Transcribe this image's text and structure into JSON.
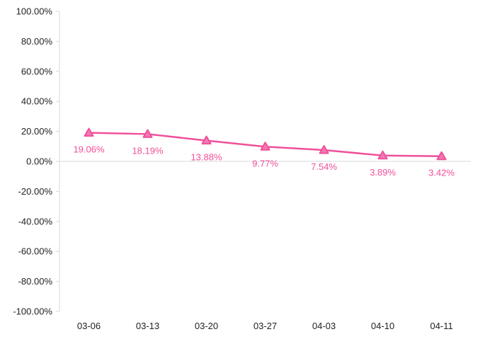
{
  "chart_data": {
    "type": "line",
    "categories": [
      "03-06",
      "03-13",
      "03-20",
      "03-27",
      "04-03",
      "04-10",
      "04-11"
    ],
    "series": [
      {
        "values": [
          19.06,
          18.19,
          13.88,
          9.77,
          7.54,
          3.89,
          3.42
        ],
        "data_labels": [
          "19.06%",
          "18.19%",
          "13.88%",
          "9.77%",
          "7.54%",
          "3.89%",
          "3.42%"
        ],
        "color": "#f0509a",
        "marker": "triangle",
        "marker_fill": "#f07ab6"
      }
    ],
    "ylim": [
      -100,
      100
    ],
    "yticks": [
      100,
      80,
      60,
      40,
      20,
      0,
      -20,
      -40,
      -60,
      -80,
      -100
    ],
    "ytick_labels": [
      "100.00%",
      "80.00%",
      "60.00%",
      "40.00%",
      "20.00%",
      "0.00%",
      "-20.00%",
      "-40.00%",
      "-60.00%",
      "-80.00%",
      "-100.00%"
    ],
    "grid": false,
    "legend": "none",
    "axis_color": "#d9d9d9",
    "tick_label_color": "#222222"
  }
}
